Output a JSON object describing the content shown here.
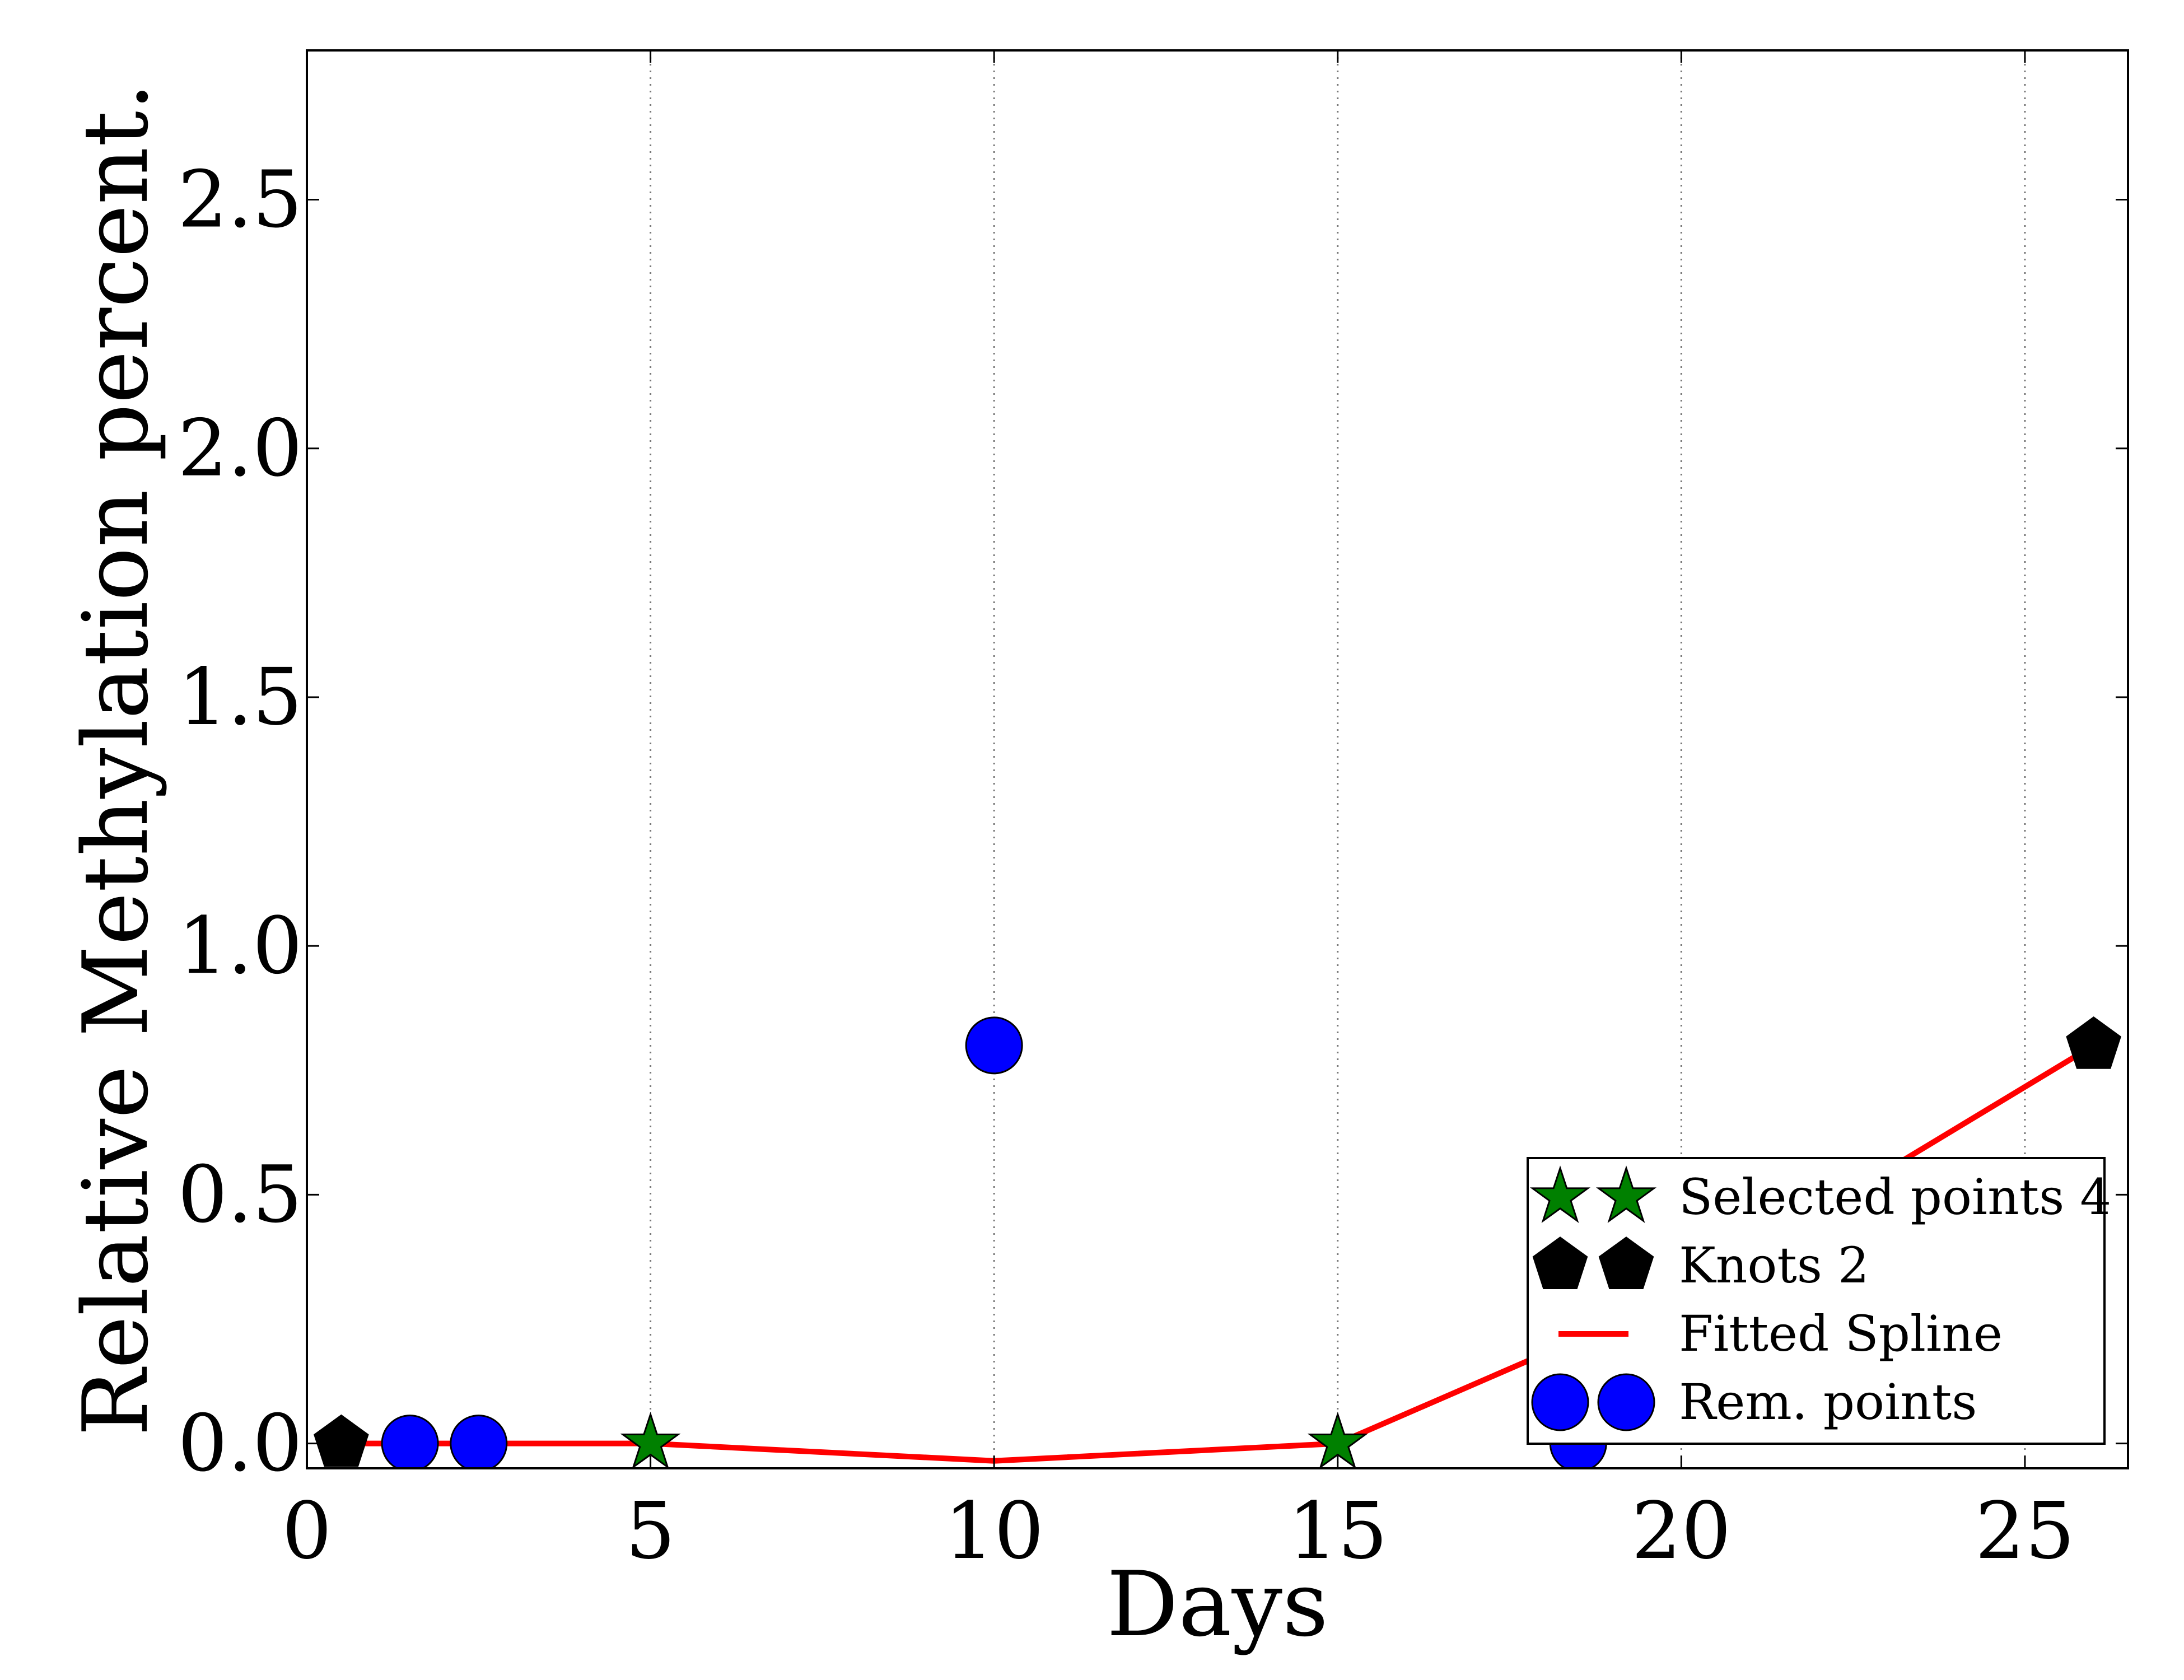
{
  "chart_data": {
    "type": "scatter",
    "title": "",
    "xlabel": "Days",
    "ylabel": "Relative Methylation percent.",
    "xlim": [
      0,
      26.5
    ],
    "ylim": [
      -0.05,
      2.8
    ],
    "xticks": [
      0,
      5,
      10,
      15,
      20,
      25
    ],
    "xtick_labels": [
      "0",
      "5",
      "10",
      "15",
      "20",
      "25"
    ],
    "yticks": [
      0.0,
      0.5,
      1.0,
      1.5,
      2.0,
      2.5
    ],
    "ytick_labels": [
      "0.0",
      "0.5",
      "1.0",
      "1.5",
      "2.0",
      "2.5"
    ],
    "grid": "vertical dotted lines at x ticks",
    "legend_position": "lower right",
    "series": [
      {
        "name": "Selected points 4",
        "marker": "star",
        "color": "#008000",
        "points": [
          [
            5,
            0.0
          ],
          [
            15,
            0.0
          ]
        ]
      },
      {
        "name": "Knots 2",
        "marker": "pentagon",
        "color": "#000000",
        "points": [
          [
            0.5,
            0.0
          ],
          [
            26,
            0.8
          ]
        ]
      },
      {
        "name": "Fitted Spline",
        "marker": "line",
        "color": "#ff0000",
        "points": [
          [
            0.5,
            0.0
          ],
          [
            5,
            0.0
          ],
          [
            10,
            -0.035
          ],
          [
            15,
            0.0
          ],
          [
            20,
            0.3
          ],
          [
            26,
            0.8
          ]
        ]
      },
      {
        "name": "Rem. points",
        "marker": "circle",
        "color": "#0000ff",
        "points": [
          [
            1.5,
            0.0
          ],
          [
            2.5,
            0.0
          ],
          [
            10,
            0.8
          ],
          [
            18.5,
            0.0
          ]
        ]
      }
    ]
  }
}
